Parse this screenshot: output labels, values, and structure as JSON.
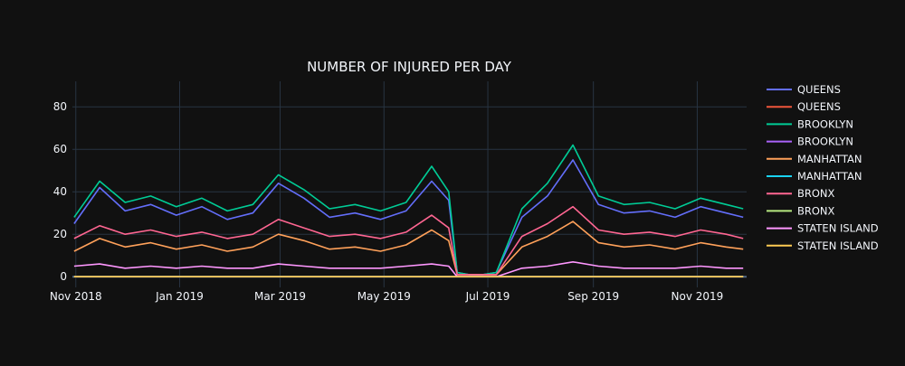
{
  "chart_data": {
    "type": "line",
    "title": "NUMBER OF INJURED PER DAY",
    "xlabel": "",
    "ylabel": "",
    "x_range": [
      "2018-10-30",
      "2019-11-30"
    ],
    "ylim": [
      -5,
      92
    ],
    "x_ticks": [
      {
        "date": "2018-11-01",
        "label": "Nov 2018"
      },
      {
        "date": "2019-01-01",
        "label": "Jan 2019"
      },
      {
        "date": "2019-03-01",
        "label": "Mar 2019"
      },
      {
        "date": "2019-05-01",
        "label": "May 2019"
      },
      {
        "date": "2019-07-01",
        "label": "Jul 2019"
      },
      {
        "date": "2019-09-01",
        "label": "Sep 2019"
      },
      {
        "date": "2019-11-01",
        "label": "Nov 2019"
      }
    ],
    "y_ticks": [
      0,
      20,
      40,
      60,
      80
    ],
    "grid": true,
    "legend_position": "right",
    "background": "#111111",
    "grid_color": "#283442",
    "x": [
      "2018-10-31",
      "2018-11-15",
      "2018-11-30",
      "2018-12-15",
      "2018-12-30",
      "2019-01-14",
      "2019-01-29",
      "2019-02-13",
      "2019-02-28",
      "2019-03-15",
      "2019-03-30",
      "2019-04-14",
      "2019-04-29",
      "2019-05-14",
      "2019-05-29",
      "2019-06-08",
      "2019-06-13",
      "2019-06-20",
      "2019-06-28",
      "2019-07-06",
      "2019-07-21",
      "2019-08-05",
      "2019-08-20",
      "2019-09-04",
      "2019-09-19",
      "2019-10-04",
      "2019-10-19",
      "2019-11-03",
      "2019-11-18",
      "2019-11-28"
    ],
    "series": [
      {
        "name": "QUEENS",
        "color": "#636efa",
        "values": [
          25,
          42,
          31,
          34,
          29,
          33,
          27,
          30,
          44,
          37,
          28,
          30,
          27,
          31,
          45,
          36,
          2,
          1,
          1,
          2,
          28,
          38,
          55,
          34,
          30,
          31,
          28,
          33,
          30,
          28
        ]
      },
      {
        "name": "QUEENS",
        "color": "#ef553b",
        "values": [
          0,
          0,
          0,
          0,
          0,
          0,
          0,
          0,
          0,
          0,
          0,
          0,
          0,
          0,
          0,
          0,
          0,
          0,
          0,
          0,
          0,
          0,
          0,
          0,
          0,
          0,
          0,
          0,
          0,
          0
        ]
      },
      {
        "name": "BROOKLYN",
        "color": "#00cc96",
        "values": [
          28,
          45,
          35,
          38,
          33,
          37,
          31,
          34,
          48,
          41,
          32,
          34,
          31,
          35,
          52,
          40,
          2,
          1,
          1,
          2,
          32,
          44,
          62,
          38,
          34,
          35,
          32,
          37,
          34,
          32
        ]
      },
      {
        "name": "BROOKLYN",
        "color": "#ab63fa",
        "values": [
          0,
          0,
          0,
          0,
          0,
          0,
          0,
          0,
          0,
          0,
          0,
          0,
          0,
          0,
          0,
          0,
          0,
          0,
          0,
          0,
          0,
          0,
          0,
          0,
          0,
          0,
          0,
          0,
          0,
          0
        ]
      },
      {
        "name": "MANHATTAN",
        "color": "#ffa15a",
        "values": [
          12,
          18,
          14,
          16,
          13,
          15,
          12,
          14,
          20,
          17,
          13,
          14,
          12,
          15,
          22,
          17,
          1,
          1,
          1,
          1,
          14,
          19,
          26,
          16,
          14,
          15,
          13,
          16,
          14,
          13
        ]
      },
      {
        "name": "MANHATTAN",
        "color": "#19d3f3",
        "values": [
          0,
          0,
          0,
          0,
          0,
          0,
          0,
          0,
          0,
          0,
          0,
          0,
          0,
          0,
          0,
          0,
          0,
          0,
          0,
          0,
          0,
          0,
          0,
          0,
          0,
          0,
          0,
          0,
          0,
          0
        ]
      },
      {
        "name": "BRONX",
        "color": "#ff6692",
        "values": [
          18,
          24,
          20,
          22,
          19,
          21,
          18,
          20,
          27,
          23,
          19,
          20,
          18,
          21,
          29,
          23,
          1,
          1,
          1,
          1,
          19,
          25,
          33,
          22,
          20,
          21,
          19,
          22,
          20,
          18
        ]
      },
      {
        "name": "BRONX",
        "color": "#b6e880",
        "values": [
          0,
          0,
          0,
          0,
          0,
          0,
          0,
          0,
          0,
          0,
          0,
          0,
          0,
          0,
          0,
          0,
          0,
          0,
          0,
          0,
          0,
          0,
          0,
          0,
          0,
          0,
          0,
          0,
          0,
          0
        ]
      },
      {
        "name": "STATEN ISLAND",
        "color": "#ff97ff",
        "values": [
          5,
          6,
          4,
          5,
          4,
          5,
          4,
          4,
          6,
          5,
          4,
          4,
          4,
          5,
          6,
          5,
          0,
          0,
          0,
          0,
          4,
          5,
          7,
          5,
          4,
          4,
          4,
          5,
          4,
          4
        ]
      },
      {
        "name": "STATEN ISLAND",
        "color": "#fecb52",
        "values": [
          0,
          0,
          0,
          0,
          0,
          0,
          0,
          0,
          0,
          0,
          0,
          0,
          0,
          0,
          0,
          0,
          0,
          0,
          0,
          0,
          0,
          0,
          0,
          0,
          0,
          0,
          0,
          0,
          0,
          0
        ]
      }
    ]
  }
}
